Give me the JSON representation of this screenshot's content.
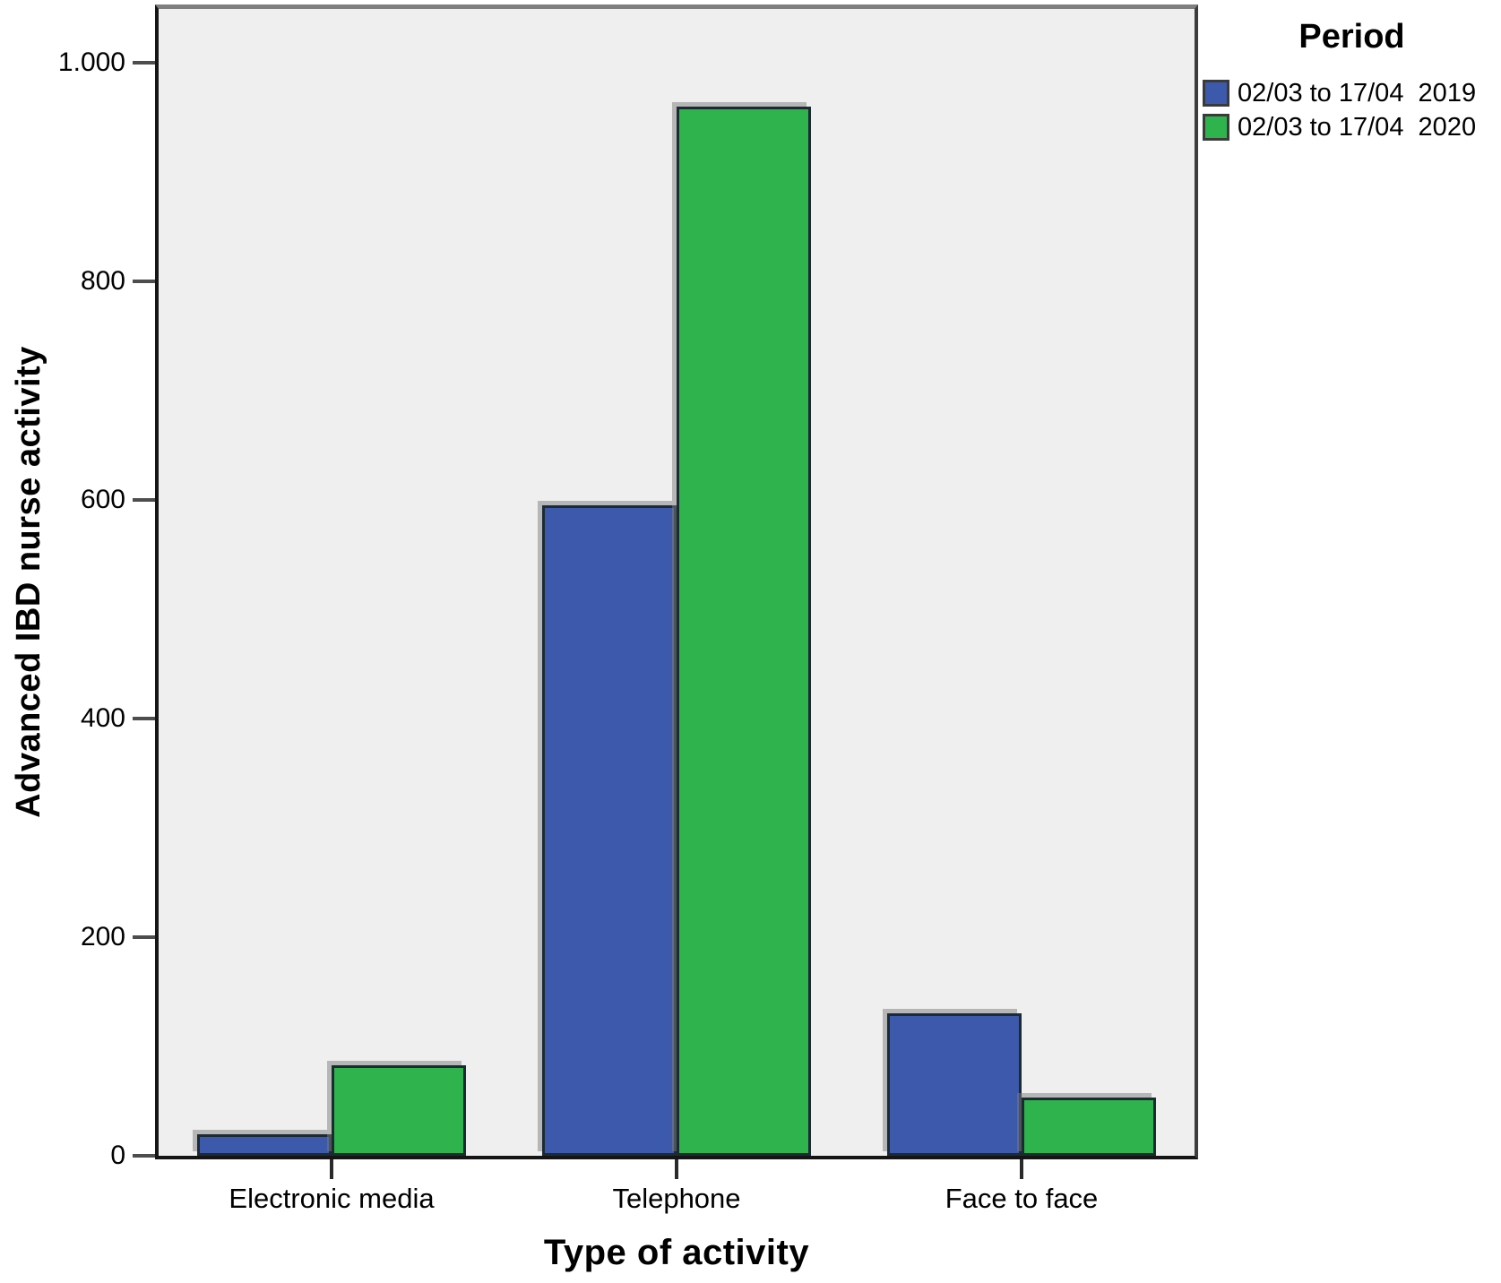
{
  "chart_data": {
    "type": "bar",
    "title": "",
    "categories": [
      "Electronic media",
      "Telephone",
      "Face to face"
    ],
    "series": [
      {
        "name": "02/03 to 17/04  2019",
        "color": "#3D59AB",
        "values": [
          20,
          595,
          130
        ]
      },
      {
        "name": "02/03 to 17/04  2020",
        "color": "#2FB44D",
        "values": [
          83,
          960,
          53
        ]
      }
    ],
    "xlabel": "Type of activity",
    "ylabel": "Advanced IBD nurse activity",
    "ylim": [
      0,
      1000
    ],
    "yticks": [
      0,
      200,
      400,
      600,
      800,
      1000
    ],
    "ytick_labels": [
      "0",
      "200",
      "400",
      "600",
      "800",
      "1.000"
    ],
    "legend_title": "Period",
    "legend_position": "top-right",
    "grid": false,
    "plot_background": "#efefef",
    "bar_border_color": "#1c2a33"
  }
}
